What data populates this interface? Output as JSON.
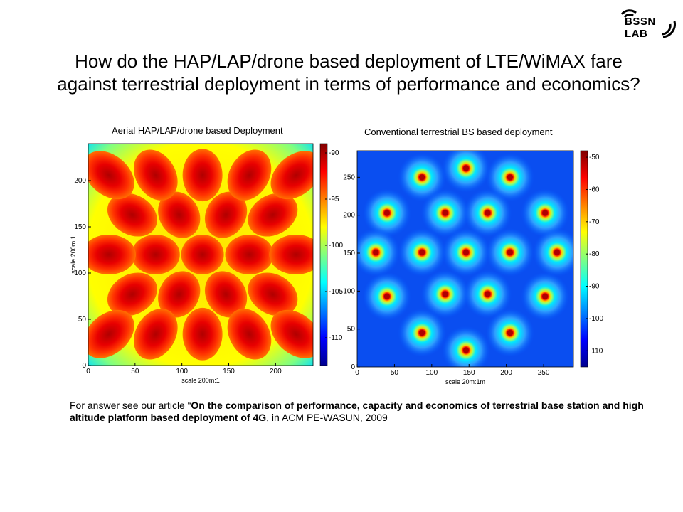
{
  "logo": {
    "text": "BSSN LAB"
  },
  "title": "How do the HAP/LAP/drone based deployment of LTE/WiMAX fare against terrestrial deployment in terms of performance and economics?",
  "captions": {
    "left": "Aerial HAP/LAP/drone  based Deployment",
    "right": "Conventional terrestrial BS based deployment"
  },
  "chart_data": [
    {
      "type": "heatmap",
      "title": "Aerial HAP/LAP/drone  based Deployment",
      "xlabel": "scale 200m:1",
      "ylabel": "scale 200m:1",
      "xticks": [
        "0",
        "50",
        "100",
        "150",
        "200"
      ],
      "yticks": [
        "0",
        "50",
        "100",
        "150",
        "200"
      ],
      "xlim": [
        0,
        240
      ],
      "ylim": [
        0,
        240
      ],
      "colorbar": {
        "range": [
          -113,
          -89
        ],
        "ticks": [
          "-90",
          "-95",
          "-100",
          "-105",
          "-110"
        ]
      },
      "cells_description_points": [
        [
          122,
          120
        ],
        [
          72,
          120
        ],
        [
          172,
          120
        ],
        [
          97,
          163
        ],
        [
          147,
          163
        ],
        [
          97,
          77
        ],
        [
          147,
          77
        ],
        [
          22,
          120
        ],
        [
          222,
          120
        ],
        [
          47,
          163
        ],
        [
          197,
          163
        ],
        [
          47,
          77
        ],
        [
          197,
          77
        ],
        [
          72,
          206
        ],
        [
          122,
          206
        ],
        [
          172,
          206
        ],
        [
          72,
          34
        ],
        [
          122,
          34
        ],
        [
          172,
          34
        ],
        [
          22,
          206
        ],
        [
          222,
          206
        ],
        [
          22,
          34
        ],
        [
          222,
          34
        ]
      ]
    },
    {
      "type": "heatmap",
      "title": "Conventional terrestrial BS based deployment",
      "xlabel": "scale 20m:1m",
      "ylabel": "",
      "xticks": [
        "0",
        "50",
        "100",
        "150",
        "200",
        "250"
      ],
      "yticks": [
        "0",
        "50",
        "100",
        "150",
        "200",
        "250"
      ],
      "xlim": [
        0,
        290
      ],
      "ylim": [
        0,
        285
      ],
      "colorbar": {
        "range": [
          -115,
          -48
        ],
        "ticks": [
          "-50",
          "-60",
          "-70",
          "-80",
          "-90",
          "-100",
          "-110"
        ]
      },
      "base_stations": [
        [
          146,
          262
        ],
        [
          87,
          250
        ],
        [
          205,
          250
        ],
        [
          40,
          203
        ],
        [
          118,
          203
        ],
        [
          175,
          203
        ],
        [
          252,
          203
        ],
        [
          25,
          151
        ],
        [
          87,
          151
        ],
        [
          146,
          151
        ],
        [
          205,
          151
        ],
        [
          268,
          151
        ],
        [
          40,
          93
        ],
        [
          118,
          96
        ],
        [
          175,
          96
        ],
        [
          252,
          93
        ],
        [
          87,
          45
        ],
        [
          205,
          45
        ],
        [
          146,
          22
        ]
      ]
    }
  ],
  "citation": {
    "prefix": "For answer see our article “",
    "bold": "On the comparison of performance, capacity and economics of terrestrial base station and high altitude platform based deployment of 4G",
    "suffix": ", in ACM PE-WASUN, 2009"
  }
}
